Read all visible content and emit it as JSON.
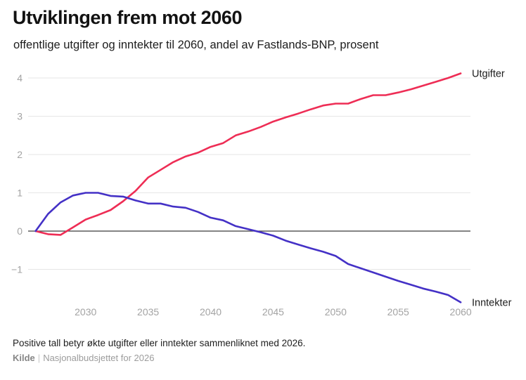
{
  "header": {
    "title": "Utviklingen frem mot 2060",
    "subtitle": "offentlige utgifter og inntekter til 2060, andel av Fastlands-BNP, prosent"
  },
  "footer": {
    "note": "Positive tall betyr økte utgifter eller inntekter sammenliknet med 2026.",
    "source_label": "Kilde",
    "source_separator": "|",
    "source": "Nasjonalbudsjettet for 2026"
  },
  "chart_data": {
    "type": "line",
    "title": "Utviklingen frem mot 2060",
    "xlabel": "",
    "ylabel": "",
    "x": [
      2026,
      2027,
      2028,
      2029,
      2030,
      2031,
      2032,
      2033,
      2034,
      2035,
      2036,
      2037,
      2038,
      2039,
      2040,
      2041,
      2042,
      2043,
      2044,
      2045,
      2046,
      2047,
      2048,
      2049,
      2050,
      2051,
      2052,
      2053,
      2054,
      2055,
      2056,
      2057,
      2058,
      2059,
      2060
    ],
    "series": [
      {
        "name": "Utgifter",
        "color": "#ee2d55",
        "values": [
          0,
          -0.08,
          -0.1,
          0.1,
          0.3,
          0.42,
          0.55,
          0.78,
          1.05,
          1.4,
          1.6,
          1.8,
          1.95,
          2.05,
          2.2,
          2.3,
          2.5,
          2.6,
          2.72,
          2.86,
          2.97,
          3.07,
          3.18,
          3.28,
          3.33,
          3.33,
          3.45,
          3.55,
          3.55,
          3.62,
          3.7,
          3.8,
          3.9,
          4.0,
          4.12
        ]
      },
      {
        "name": "Inntekter",
        "color": "#4431c6",
        "values": [
          0,
          0.45,
          0.75,
          0.93,
          1.0,
          1.0,
          0.92,
          0.9,
          0.8,
          0.72,
          0.72,
          0.64,
          0.61,
          0.5,
          0.35,
          0.28,
          0.13,
          0.05,
          -0.03,
          -0.12,
          -0.25,
          -0.35,
          -0.45,
          -0.54,
          -0.65,
          -0.86,
          -0.97,
          -1.08,
          -1.19,
          -1.3,
          -1.4,
          -1.5,
          -1.58,
          -1.67,
          -1.86
        ]
      }
    ],
    "xticks": [
      2030,
      2035,
      2040,
      2045,
      2050,
      2055,
      2060
    ],
    "yticks": [
      4,
      3,
      2,
      1,
      0,
      -1
    ],
    "xlim": [
      2026,
      2060
    ],
    "ylim": [
      -1.9,
      4.4
    ],
    "grid": true,
    "zero_line": true,
    "legend_position": "end-of-line",
    "style": {
      "grid_color": "#e6e6e6",
      "zero_line_color": "#3a3a3a",
      "tick_label_color": "#a3a3a3",
      "series_label_color": "#1d1d1d"
    }
  }
}
